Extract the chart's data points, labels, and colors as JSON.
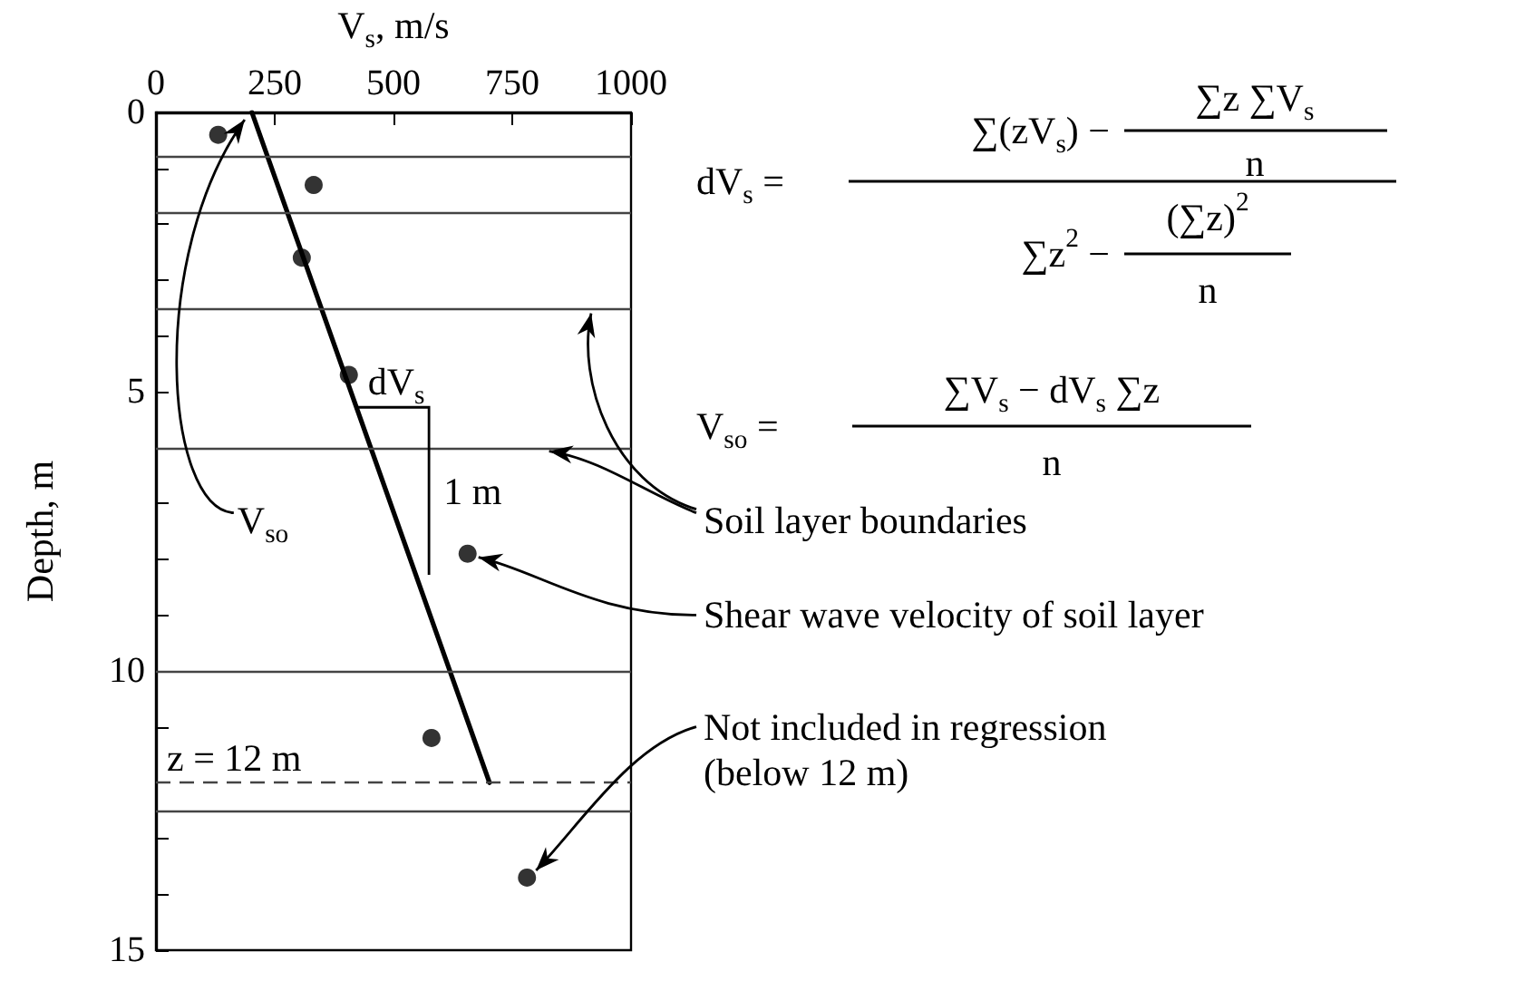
{
  "chart_data": {
    "type": "scatter",
    "xlabel": "V$_{s}$, m/s",
    "ylabel": "Depth, m",
    "xlim": [
      0,
      1000
    ],
    "xticks": [
      0,
      250,
      500,
      750,
      1000
    ],
    "ylim": [
      15,
      0
    ],
    "yticks": [
      0,
      {
        "value": 1,
        "label": null
      },
      {
        "value": 2,
        "label": null
      },
      {
        "value": 3,
        "label": null
      },
      {
        "value": 4,
        "label": null
      },
      5,
      {
        "value": 6,
        "label": null
      },
      {
        "value": 7,
        "label": null
      },
      {
        "value": 8,
        "label": null
      },
      {
        "value": 9,
        "label": null
      },
      10,
      {
        "value": 11,
        "label": null
      },
      {
        "value": 12,
        "label": null
      },
      {
        "value": 13,
        "label": null
      },
      {
        "value": 14,
        "label": null
      },
      15
    ],
    "marker": "circle",
    "series": [
      {
        "type": "scatter",
        "color": "#000000",
        "x": [
          131,
          332,
          307,
          406,
          656,
          580,
          781
        ],
        "values": [
          0.4,
          1.3,
          2.6,
          4.7,
          7.9,
          11.2,
          13.7
        ]
      },
      {
        "type": "line",
        "color": "#000000",
        "marker": "none",
        "x": [
          202,
          702
        ],
        "values": [
          0,
          12
        ]
      }
    ],
    "ref_lines": [
      {
        "axis": "y",
        "value": 0.8
      },
      {
        "axis": "y",
        "value": 1.8
      },
      {
        "axis": "y",
        "value": 3.5
      },
      {
        "axis": "y",
        "value": 6
      },
      {
        "axis": "y",
        "value": 10
      },
      {
        "axis": "y",
        "value": 12,
        "label": "z = 12 m",
        "line_style": "dashed"
      },
      {
        "axis": "y",
        "value": 12.5
      }
    ],
    "annotations": [
      "dV$_{s}$ =",
      "∑(zV$_{s}$) −",
      "∑z ∑V$_{s}$",
      "n",
      "∑z$^{2}$ −",
      "(∑z)$^{2}$",
      "n",
      "V$_{so}$ =",
      "∑V$_{s}$ − dV$_{s}$ ∑z",
      "n",
      {
        "text": "V$_{so}$",
        "x": 202,
        "y": 0
      },
      "dV$_{s}$",
      "1 m",
      {
        "text": "Soil layer boundaries",
        "x": 820,
        "y": 6
      },
      {
        "text": "Shear wave velocity of soil layer",
        "x": 656,
        "y": 7.9
      },
      {
        "text": "Not included in regression\n(below 12 m)",
        "x": 781,
        "y": 13.7
      }
    ]
  }
}
